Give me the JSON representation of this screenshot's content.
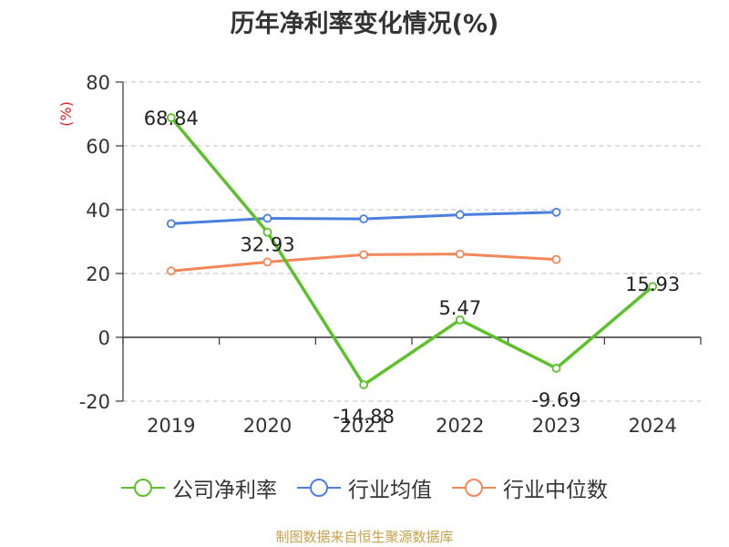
{
  "chart_data": {
    "type": "line",
    "title": "历年净利率变化情况(%)",
    "ylabel": "(%)",
    "categories": [
      "2019",
      "2020",
      "2021",
      "2022",
      "2023",
      "2024"
    ],
    "ylim": [
      -20,
      80
    ],
    "yticks": [
      80,
      60,
      40,
      20,
      0,
      -20
    ],
    "grid": true,
    "legend_position": "bottom",
    "series": [
      {
        "name": "公司净利率",
        "color": "#5cc12a",
        "values": [
          68.84,
          32.93,
          -14.88,
          5.47,
          -9.69,
          15.93
        ],
        "labels": [
          "68.84",
          "32.93",
          "-14.88",
          "5.47",
          "-9.69",
          "15.93"
        ]
      },
      {
        "name": "行业均值",
        "color": "#4a7fdc",
        "values": [
          35.6,
          37.3,
          37.1,
          38.4,
          39.2,
          null
        ]
      },
      {
        "name": "行业中位数",
        "color": "#f2875a",
        "values": [
          20.8,
          23.6,
          25.9,
          26.1,
          24.4,
          null
        ]
      }
    ]
  },
  "source": "制图数据来自恒生聚源数据库"
}
